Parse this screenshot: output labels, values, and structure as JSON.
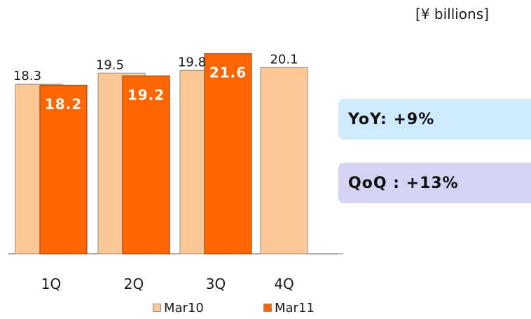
{
  "unit_label": "[¥ billions]",
  "callouts": {
    "yoy": "YoY: +9%",
    "qoq": "QoQ : +13%"
  },
  "colors": {
    "mar10": "#fcc895",
    "mar11": "#ff6600",
    "yoy_box": "#cfeafd",
    "qoq_box": "#d4d3f3"
  },
  "chart_data": {
    "type": "bar",
    "categories": [
      "1Q",
      "2Q",
      "3Q",
      "4Q"
    ],
    "series": [
      {
        "name": "Mar10",
        "values": [
          18.3,
          19.5,
          19.8,
          20.1
        ]
      },
      {
        "name": "Mar11",
        "values": [
          18.2,
          19.2,
          21.6,
          null
        ]
      }
    ],
    "ylim": [
      0,
      22.7
    ],
    "grid": false,
    "legend_position": "bottom"
  }
}
